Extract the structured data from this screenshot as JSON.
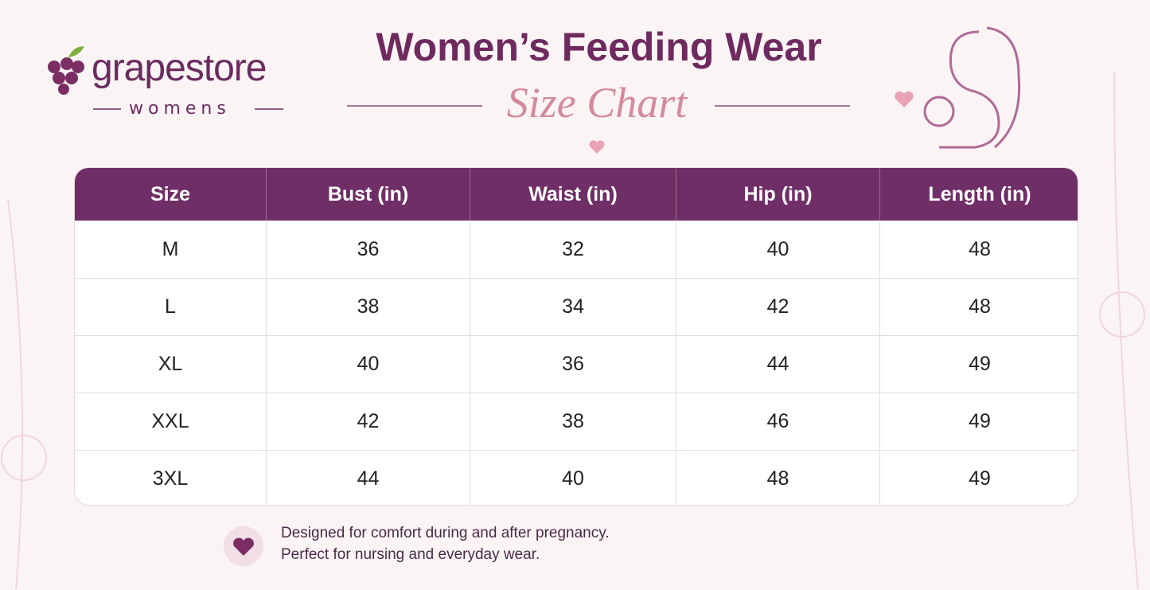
{
  "logo": {
    "brand": "grapestore",
    "sub": "womens"
  },
  "header": {
    "title": "Women’s Feeding Wear",
    "subtitle": "Size Chart"
  },
  "table": {
    "columns": [
      "Size",
      "Bust (in)",
      "Waist (in)",
      "Hip (in)",
      "Length (in)"
    ],
    "rows": [
      [
        "M",
        36,
        32,
        40,
        48
      ],
      [
        "L",
        38,
        34,
        42,
        48
      ],
      [
        "XL",
        40,
        36,
        44,
        49
      ],
      [
        "XXL",
        42,
        38,
        46,
        49
      ],
      [
        "3XL",
        44,
        40,
        48,
        49
      ]
    ]
  },
  "footer": {
    "lines": [
      "Designed for comfort during and after pregnancy.",
      "Perfect for nursing and everyday wear."
    ]
  }
}
